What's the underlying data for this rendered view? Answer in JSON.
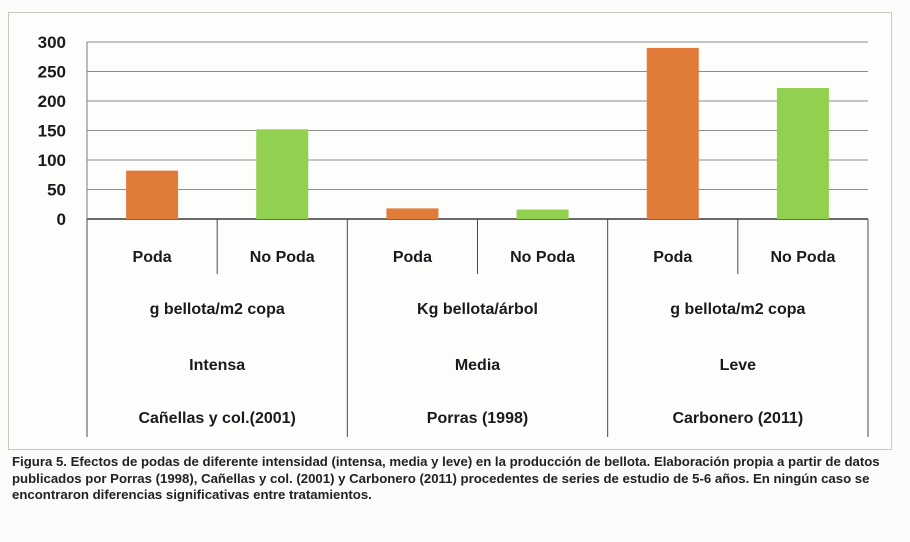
{
  "chart_data": {
    "type": "bar",
    "ylim": [
      0,
      300
    ],
    "yticks": [
      0,
      50,
      100,
      150,
      200,
      250,
      300
    ],
    "grid": true,
    "categories": [
      "Poda",
      "No Poda",
      "Poda",
      "No Poda",
      "Poda",
      "No Poda"
    ],
    "values": [
      82,
      152,
      18,
      16,
      290,
      222
    ],
    "bar_colors": [
      "#e07b39",
      "#92d050",
      "#e07b39",
      "#92d050",
      "#e07b39",
      "#92d050"
    ],
    "groups": [
      {
        "unit": "g bellota/m2 copa",
        "intensity": "Intensa",
        "source": "Cañellas y col.(2001)"
      },
      {
        "unit": "Kg bellota/árbol",
        "intensity": "Media",
        "source": "Porras (1998)"
      },
      {
        "unit": "g bellota/m2 copa",
        "intensity": "Leve",
        "source": "Carbonero (2011)"
      }
    ]
  },
  "caption": "Figura 5. Efectos de podas de diferente intensidad (intensa, media y leve) en la producción de bellota. Elaboración propia a partir de datos publicados por Porras (1998), Cañellas y col. (2001) y Carbonero (2011) procedentes de series de estudio de 5-6 años. En ningún caso se encontraron diferencias significativas entre tratamientos."
}
